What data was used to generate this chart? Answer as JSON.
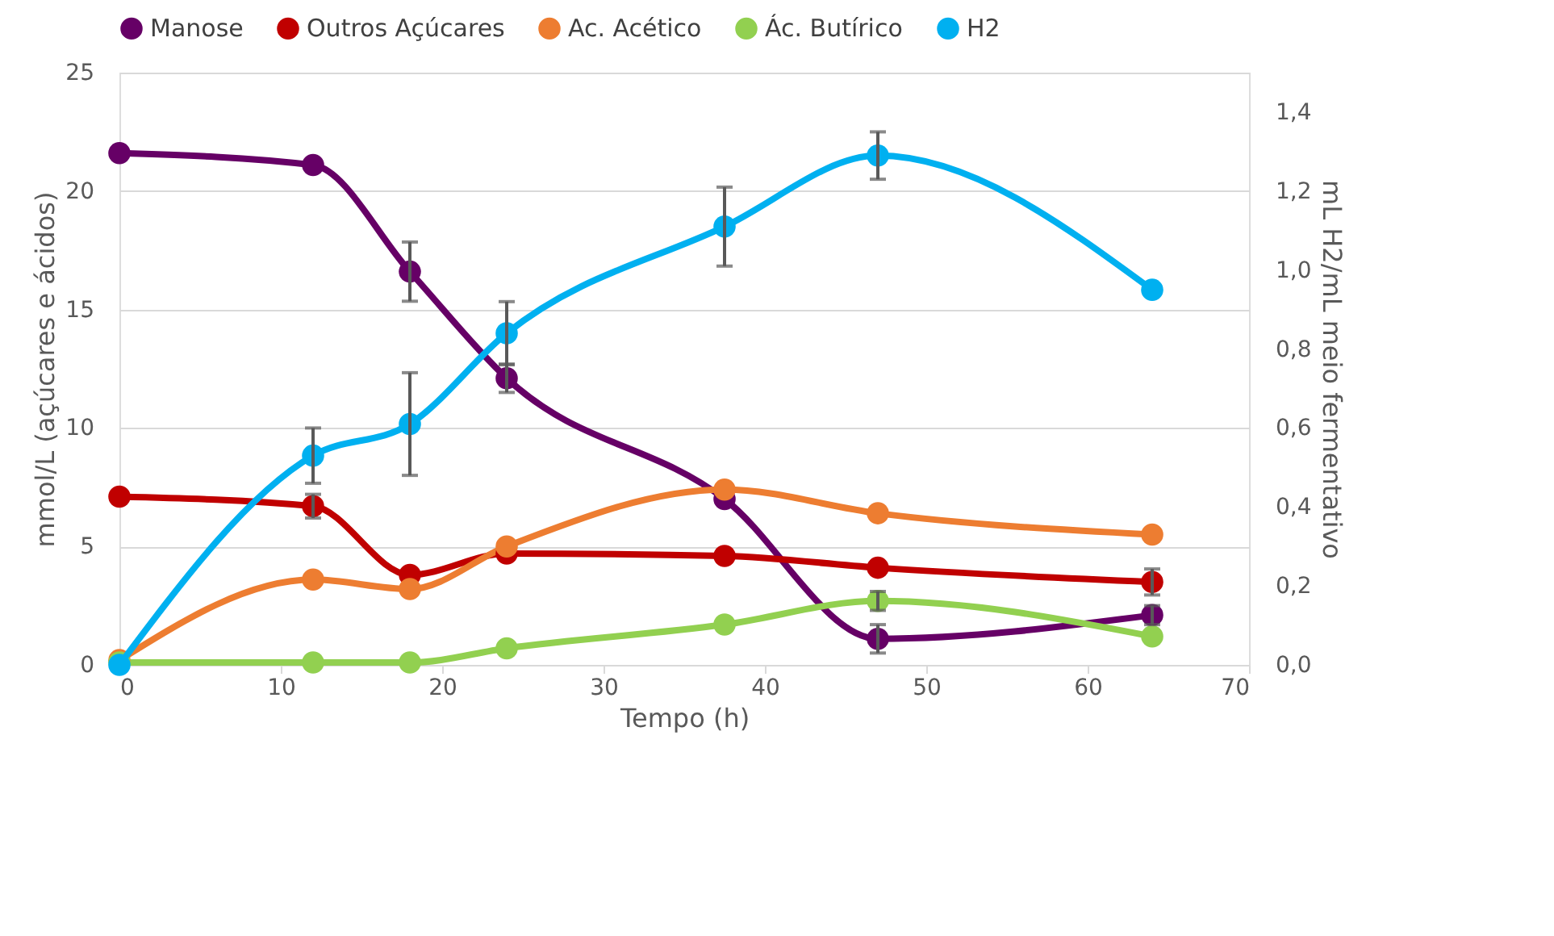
{
  "chart_data": {
    "type": "line",
    "xlabel": "Tempo (h)",
    "ylabel": "mmol/L (açúcares e ácidos)",
    "y2label": "mL H2/mL meio fermentativo",
    "x": [
      0,
      12,
      18,
      24,
      37.5,
      47,
      64
    ],
    "xlim": [
      0,
      70
    ],
    "xticks": [
      0,
      10,
      20,
      30,
      40,
      50,
      60,
      70
    ],
    "ylim": [
      0,
      25
    ],
    "yticks": [
      0,
      5,
      10,
      15,
      20,
      25
    ],
    "y2lim": [
      0,
      1.5
    ],
    "y2ticks": [
      {
        "value": 0,
        "label": "0,0"
      },
      {
        "value": 0.2,
        "label": "0,2"
      },
      {
        "value": 0.4,
        "label": "0,4"
      },
      {
        "value": 0.6,
        "label": "0,6"
      },
      {
        "value": 0.8,
        "label": "0,8"
      },
      {
        "value": 1.0,
        "label": "1,0"
      },
      {
        "value": 1.2,
        "label": "1,2"
      },
      {
        "value": 1.4,
        "label": "1,4"
      }
    ],
    "grid": "y",
    "legend": "top",
    "marker": "circle",
    "line_style": "solid",
    "series": [
      {
        "name": "Manose",
        "color": "#660066",
        "values": [
          21.6,
          21.1,
          16.6,
          12.1,
          7.0,
          1.1,
          2.1
        ],
        "errors": [
          null,
          null,
          1.25,
          0.6,
          null,
          0.6,
          0.4
        ]
      },
      {
        "name": "Outros Açúcares",
        "color": "#c00000",
        "values": [
          7.1,
          6.7,
          3.8,
          4.7,
          4.6,
          4.1,
          3.5
        ],
        "errors": [
          null,
          0.5,
          null,
          null,
          null,
          null,
          0.55
        ]
      },
      {
        "name": "Ac. Acético",
        "color": "#ed7d31",
        "values": [
          0.2,
          3.6,
          3.2,
          5.0,
          7.4,
          6.4,
          5.5
        ]
      },
      {
        "name": "Ác. Butírico",
        "color": "#92d050",
        "values": [
          0.1,
          0.1,
          0.1,
          0.7,
          1.7,
          2.7,
          1.2
        ],
        "errors": [
          null,
          null,
          null,
          null,
          null,
          0.4,
          null
        ]
      },
      {
        "name": "H2",
        "color": "#00b0f0",
        "axis": "y2",
        "values": [
          0.0,
          0.53,
          0.61,
          0.84,
          1.11,
          1.29,
          0.95
        ],
        "errors": [
          null,
          0.07,
          0.13,
          0.08,
          0.1,
          0.06,
          null
        ]
      }
    ]
  }
}
